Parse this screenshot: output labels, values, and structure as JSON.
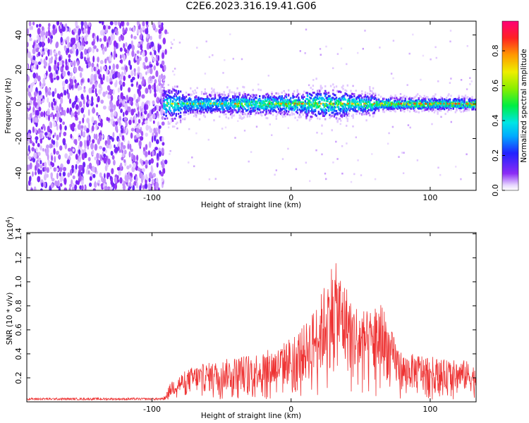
{
  "title": "C2E6.2023.316.19.41.G06",
  "chart_data": [
    {
      "type": "heatmap",
      "xlabel": "Height of straight line (km)",
      "ylabel": "Frequency (Hz)",
      "xlim": [
        -190,
        133
      ],
      "ylim": [
        -50,
        48
      ],
      "xticks": [
        -100,
        0,
        100
      ],
      "xticklabels": [
        "-100",
        "0",
        "100"
      ],
      "yticks": [
        -40,
        -20,
        0,
        20,
        40
      ],
      "yticklabels": [
        "-40",
        "-20",
        "0",
        "20",
        "40"
      ],
      "colorbar": {
        "label": "Normalized spectral amplitude",
        "range": [
          0,
          0.97
        ],
        "ticks": [
          0,
          0.2,
          0.4,
          0.6,
          0.8
        ],
        "ticklabels": [
          "0.0",
          "0.2",
          "0.4",
          "0.6",
          "0.8"
        ],
        "colormap": "rainbow"
      },
      "description_regions": [
        {
          "x_range": [
            -190,
            -90
          ],
          "y_range": [
            -50,
            48
          ],
          "amplitude": 0.1
        },
        {
          "x_range": [
            -90,
            133
          ],
          "y_center": 0,
          "amplitude_peak": 0.9
        }
      ]
    },
    {
      "type": "line",
      "xlabel": "Height of straight line (km)",
      "ylabel": "SNR (10 * v/v)",
      "yscale_label": "(x10",
      "yscale_exp": "4",
      "yscale_close": ")",
      "xlim": [
        -190,
        133
      ],
      "ylim": [
        0,
        1.41
      ],
      "xticks": [
        -100,
        0,
        100
      ],
      "xticklabels": [
        "-100",
        "0",
        "100"
      ],
      "yticks": [
        0.2,
        0.4,
        0.6,
        0.8,
        1.0,
        1.2,
        1.4
      ],
      "yticklabels": [
        "0.2",
        "0.4",
        "0.6",
        "0.8",
        "1.0",
        "1.2",
        "1.4"
      ],
      "color": "#ee3333",
      "envelope": {
        "x": [
          -190,
          -150,
          -100,
          -92,
          -85,
          -70,
          -50,
          -30,
          -10,
          0,
          10,
          20,
          30,
          35,
          45,
          55,
          65,
          72,
          80,
          95,
          110,
          125,
          133
        ],
        "y": [
          0.03,
          0.03,
          0.03,
          0.03,
          0.2,
          0.3,
          0.35,
          0.4,
          0.45,
          0.55,
          0.65,
          0.85,
          1.2,
          1.1,
          0.85,
          0.75,
          0.85,
          0.6,
          0.4,
          0.4,
          0.35,
          0.35,
          0.3
        ]
      }
    }
  ]
}
